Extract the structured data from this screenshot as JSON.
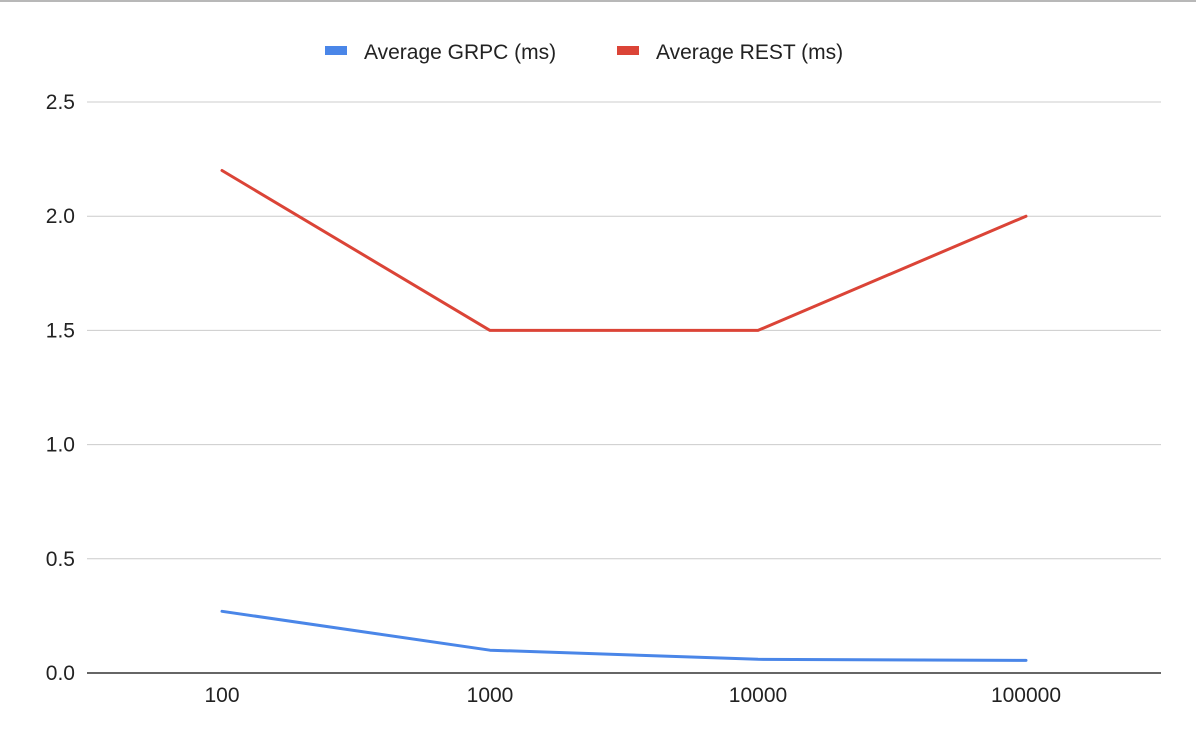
{
  "chart_data": {
    "type": "line",
    "categories": [
      "100",
      "1000",
      "10000",
      "100000"
    ],
    "series": [
      {
        "name": "Average GRPC (ms)",
        "color": "#4a86e8",
        "values": [
          0.27,
          0.1,
          0.06,
          0.055
        ]
      },
      {
        "name": "Average REST (ms)",
        "color": "#db4437",
        "values": [
          2.2,
          1.5,
          1.5,
          2.0
        ]
      }
    ],
    "yticks": [
      "0.0",
      "0.5",
      "1.0",
      "1.5",
      "2.0",
      "2.5"
    ],
    "ylim": [
      0,
      2.5
    ],
    "xlabel": "",
    "ylabel": "",
    "title": "",
    "grid": true,
    "legend_position": "top-center"
  }
}
